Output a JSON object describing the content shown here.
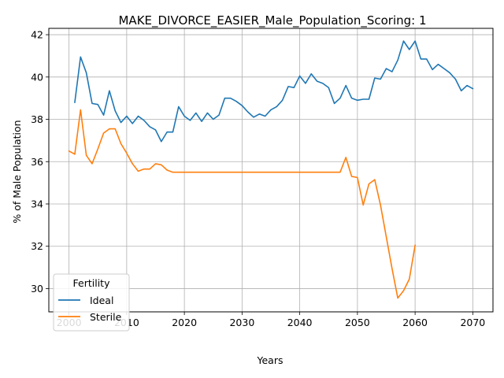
{
  "chart_data": {
    "type": "line",
    "title": "MAKE_DIVORCE_EASIER_Male_Population_Scoring: 1",
    "xlabel": "Years",
    "ylabel": "% of Male Population",
    "xlim": [
      1996.5,
      2073.5
    ],
    "ylim": [
      28.9,
      42.3
    ],
    "xticks": [
      2000,
      2010,
      2020,
      2030,
      2040,
      2050,
      2060,
      2070
    ],
    "yticks": [
      30,
      32,
      34,
      36,
      38,
      40,
      42
    ],
    "grid": true,
    "legend": {
      "title": "Fertility",
      "placement": "lower-left"
    },
    "series": [
      {
        "name": "Ideal",
        "color": "#1f77b4",
        "x": [
          2001,
          2002,
          2003,
          2004,
          2005,
          2006,
          2007,
          2008,
          2009,
          2010,
          2011,
          2012,
          2013,
          2014,
          2015,
          2016,
          2017,
          2018,
          2019,
          2020,
          2021,
          2022,
          2023,
          2024,
          2025,
          2026,
          2027,
          2028,
          2029,
          2030,
          2031,
          2032,
          2033,
          2034,
          2035,
          2036,
          2037,
          2038,
          2039,
          2040,
          2041,
          2042,
          2043,
          2044,
          2045,
          2046,
          2047,
          2048,
          2049,
          2050,
          2051,
          2052,
          2053,
          2054,
          2055,
          2056,
          2057,
          2058,
          2059,
          2060,
          2061,
          2062,
          2063,
          2064,
          2065,
          2066,
          2067,
          2068,
          2069,
          2070
        ],
        "y": [
          38.8,
          40.95,
          40.2,
          38.75,
          38.7,
          38.2,
          39.35,
          38.4,
          37.85,
          38.15,
          37.8,
          38.15,
          37.95,
          37.65,
          37.5,
          36.95,
          37.4,
          37.4,
          38.6,
          38.15,
          37.95,
          38.3,
          37.9,
          38.3,
          38.0,
          38.2,
          39.0,
          39.0,
          38.85,
          38.65,
          38.35,
          38.1,
          38.25,
          38.15,
          38.45,
          38.6,
          38.9,
          39.55,
          39.5,
          40.05,
          39.7,
          40.15,
          39.8,
          39.7,
          39.5,
          38.75,
          39.0,
          39.6,
          39.0,
          38.9,
          38.95,
          38.95,
          39.95,
          39.9,
          40.4,
          40.25,
          40.8,
          41.7,
          41.3,
          41.7,
          40.85,
          40.85,
          40.35,
          40.6,
          40.4,
          40.2,
          39.9,
          39.35,
          39.6,
          39.45
        ]
      },
      {
        "name": "Sterile",
        "color": "#ff7f0e",
        "x": [
          2000,
          2001,
          2002,
          2003,
          2004,
          2005,
          2006,
          2007,
          2008,
          2009,
          2010,
          2011,
          2012,
          2013,
          2014,
          2015,
          2016,
          2017,
          2018,
          2019,
          2020,
          2021,
          2022,
          2023,
          2024,
          2025,
          2026,
          2027,
          2028,
          2029,
          2030,
          2031,
          2032,
          2033,
          2034,
          2035,
          2036,
          2037,
          2038,
          2039,
          2040,
          2041,
          2042,
          2043,
          2044,
          2045,
          2046,
          2047,
          2048,
          2049,
          2050,
          2051,
          2052,
          2053,
          2054,
          2055,
          2056,
          2057,
          2058,
          2059,
          2060
        ],
        "y": [
          36.5,
          36.35,
          38.45,
          36.3,
          35.9,
          36.6,
          37.35,
          37.55,
          37.55,
          36.85,
          36.4,
          35.9,
          35.55,
          35.65,
          35.65,
          35.9,
          35.85,
          35.6,
          35.5,
          35.5,
          35.5,
          35.5,
          35.5,
          35.5,
          35.5,
          35.5,
          35.5,
          35.5,
          35.5,
          35.5,
          35.5,
          35.5,
          35.5,
          35.5,
          35.5,
          35.5,
          35.5,
          35.5,
          35.5,
          35.5,
          35.5,
          35.5,
          35.5,
          35.5,
          35.5,
          35.5,
          35.5,
          35.5,
          36.2,
          35.3,
          35.25,
          33.95,
          34.95,
          35.15,
          33.95,
          32.45,
          30.95,
          29.55,
          29.9,
          30.45,
          32.05
        ]
      }
    ]
  }
}
